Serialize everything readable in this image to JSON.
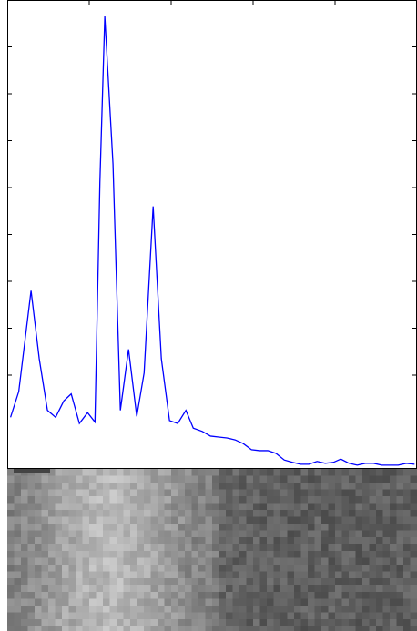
{
  "chart_data": {
    "type": "line",
    "x": [
      0.04,
      0.14,
      0.29,
      0.39,
      0.49,
      0.59,
      0.69,
      0.78,
      0.88,
      0.98,
      1.07,
      1.13,
      1.19,
      1.29,
      1.38,
      1.48,
      1.58,
      1.67,
      1.78,
      1.88,
      1.98,
      2.08,
      2.18,
      2.27,
      2.38,
      2.48,
      2.58,
      2.68,
      2.78,
      2.88,
      2.98,
      3.08,
      3.18,
      3.28,
      3.38,
      3.48,
      3.58,
      3.68,
      3.78,
      3.88,
      3.98,
      4.07,
      4.17,
      4.27,
      4.37,
      4.47,
      4.57,
      4.67,
      4.77,
      4.87,
      4.97
    ],
    "series": [
      {
        "color": "#0000ff",
        "values": [
          1.1,
          1.65,
          3.8,
          2.35,
          1.25,
          1.1,
          1.45,
          1.6,
          0.97,
          1.2,
          1.0,
          6.1,
          9.65,
          6.5,
          1.25,
          2.55,
          1.12,
          2.05,
          5.6,
          2.35,
          1.03,
          0.97,
          1.25,
          0.87,
          0.8,
          0.7,
          0.68,
          0.66,
          0.62,
          0.54,
          0.41,
          0.39,
          0.39,
          0.33,
          0.19,
          0.14,
          0.1,
          0.1,
          0.16,
          0.12,
          0.14,
          0.21,
          0.12,
          0.08,
          0.12,
          0.12,
          0.08,
          0.08,
          0.08,
          0.12,
          0.1
        ]
      }
    ],
    "xlim": [
      0,
      5
    ],
    "ylim": [
      0,
      10
    ],
    "xticks": [
      1,
      2,
      3,
      4
    ],
    "yticks": [
      1,
      2,
      3,
      4,
      5,
      6,
      7,
      8,
      9
    ]
  }
}
